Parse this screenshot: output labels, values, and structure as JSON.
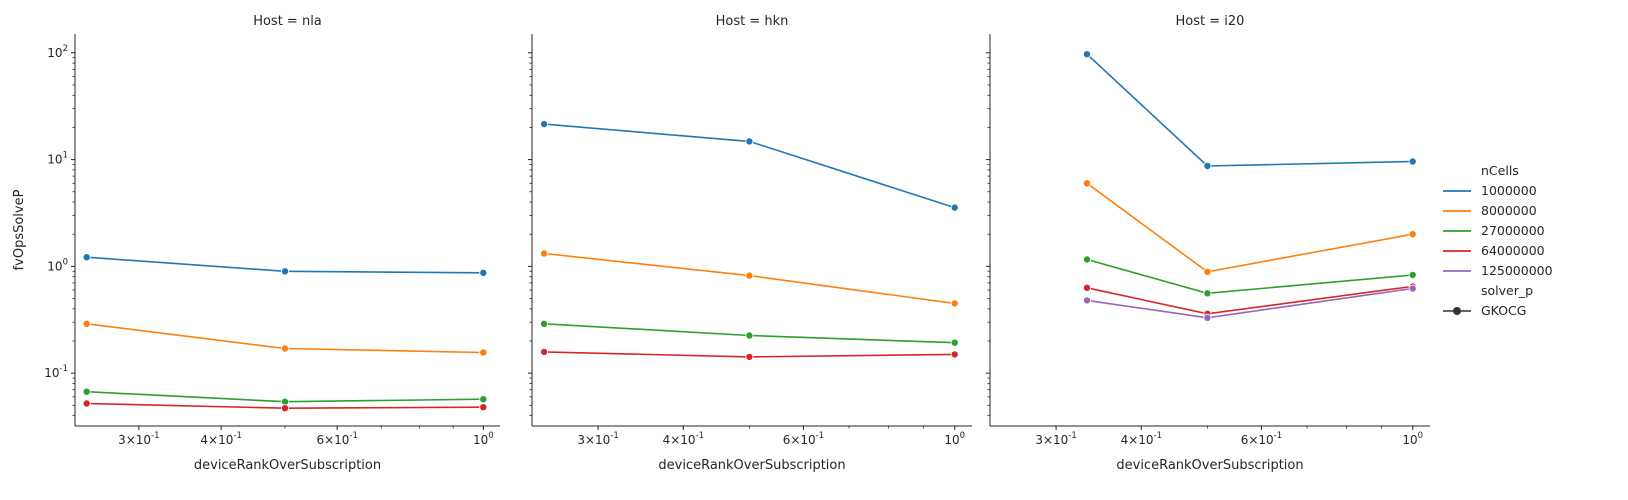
{
  "figure": {
    "facet_variable": "Host",
    "shared_ylabel": "fvOpsSolveP",
    "legend": {
      "hue_title": "nCells",
      "style_title": "solver_p",
      "style_entries": [
        "GKOCG"
      ],
      "placement": "right"
    },
    "colors": {
      "1000000": "#1f77b4",
      "8000000": "#ff7f0e",
      "27000000": "#2ca02c",
      "64000000": "#d62728",
      "125000000": "#9467bd"
    }
  },
  "chart_data": [
    {
      "type": "line",
      "title": "Host = nla",
      "xlabel": "deviceRankOverSubscription",
      "ylabel": "fvOpsSolveP",
      "xscale": "log",
      "yscale": "log",
      "xlim": [
        0.24,
        1.06
      ],
      "ylim": [
        0.032,
        150
      ],
      "xticks": [
        {
          "v": 0.3,
          "b": "3",
          "e": "-1"
        },
        {
          "v": 0.4,
          "b": "4",
          "e": "-1"
        },
        {
          "v": 0.6,
          "b": "6",
          "e": "-1"
        },
        {
          "v": 1.0,
          "b": "10",
          "e": "0"
        }
      ],
      "yticks": [
        {
          "v": 0.1,
          "b": "10",
          "e": "-1"
        },
        {
          "v": 1,
          "b": "10",
          "e": "0"
        },
        {
          "v": 10,
          "b": "10",
          "e": "1"
        },
        {
          "v": 100,
          "b": "10",
          "e": "2"
        }
      ],
      "x": [
        0.25,
        0.5,
        1.0
      ],
      "series": [
        {
          "name": "1000000",
          "values": [
            1.22,
            0.9,
            0.87
          ]
        },
        {
          "name": "8000000",
          "values": [
            0.29,
            0.17,
            0.156
          ]
        },
        {
          "name": "27000000",
          "values": [
            0.067,
            0.054,
            0.057
          ]
        },
        {
          "name": "64000000",
          "values": [
            0.052,
            0.047,
            0.048
          ]
        }
      ]
    },
    {
      "type": "line",
      "title": "Host = hkn",
      "xlabel": "deviceRankOverSubscription",
      "ylabel": "",
      "xscale": "log",
      "yscale": "log",
      "xlim": [
        0.24,
        1.06
      ],
      "ylim": [
        0.032,
        150
      ],
      "xticks": [
        {
          "v": 0.3,
          "b": "3",
          "e": "-1"
        },
        {
          "v": 0.4,
          "b": "4",
          "e": "-1"
        },
        {
          "v": 0.6,
          "b": "6",
          "e": "-1"
        },
        {
          "v": 1.0,
          "b": "10",
          "e": "0"
        }
      ],
      "yticks": [
        {
          "v": 0.1,
          "b": "10",
          "e": "-1"
        },
        {
          "v": 1,
          "b": "10",
          "e": "0"
        },
        {
          "v": 10,
          "b": "10",
          "e": "1"
        },
        {
          "v": 100,
          "b": "10",
          "e": "2"
        }
      ],
      "x": [
        0.25,
        0.5,
        1.0
      ],
      "series": [
        {
          "name": "1000000",
          "values": [
            21.5,
            14.8,
            3.55
          ]
        },
        {
          "name": "8000000",
          "values": [
            1.32,
            0.82,
            0.45
          ]
        },
        {
          "name": "27000000",
          "values": [
            0.29,
            0.225,
            0.193
          ]
        },
        {
          "name": "64000000",
          "values": [
            0.158,
            0.142,
            0.15
          ]
        }
      ]
    },
    {
      "type": "line",
      "title": "Host = i20",
      "xlabel": "deviceRankOverSubscription",
      "ylabel": "",
      "xscale": "log",
      "yscale": "log",
      "xlim": [
        0.24,
        1.06
      ],
      "ylim": [
        0.032,
        150
      ],
      "xticks": [
        {
          "v": 0.3,
          "b": "3",
          "e": "-1"
        },
        {
          "v": 0.4,
          "b": "4",
          "e": "-1"
        },
        {
          "v": 0.6,
          "b": "6",
          "e": "-1"
        },
        {
          "v": 1.0,
          "b": "10",
          "e": "0"
        }
      ],
      "yticks": [
        {
          "v": 0.1,
          "b": "10",
          "e": "-1"
        },
        {
          "v": 1,
          "b": "10",
          "e": "0"
        },
        {
          "v": 10,
          "b": "10",
          "e": "1"
        },
        {
          "v": 100,
          "b": "10",
          "e": "2"
        }
      ],
      "x": [
        0.333,
        0.5,
        1.0
      ],
      "series": [
        {
          "name": "1000000",
          "values": [
            97.0,
            8.7,
            9.6
          ]
        },
        {
          "name": "8000000",
          "values": [
            6.0,
            0.89,
            2.0
          ]
        },
        {
          "name": "27000000",
          "values": [
            1.16,
            0.56,
            0.83
          ]
        },
        {
          "name": "64000000",
          "values": [
            0.63,
            0.36,
            0.65
          ]
        },
        {
          "name": "125000000",
          "values": [
            0.48,
            0.33,
            0.62
          ]
        }
      ]
    }
  ]
}
